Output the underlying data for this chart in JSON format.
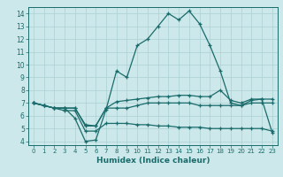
{
  "xlabel": "Humidex (Indice chaleur)",
  "ylabel": "",
  "bg_color": "#cce8ea",
  "grid_color": "#aad0d4",
  "line_color": "#1a6b6b",
  "xlim": [
    -0.5,
    23.5
  ],
  "ylim": [
    3.7,
    14.5
  ],
  "yticks": [
    4,
    5,
    6,
    7,
    8,
    9,
    10,
    11,
    12,
    13,
    14
  ],
  "xticks": [
    0,
    1,
    2,
    3,
    4,
    5,
    6,
    7,
    8,
    9,
    10,
    11,
    12,
    13,
    14,
    15,
    16,
    17,
    18,
    19,
    20,
    21,
    22,
    23
  ],
  "line1_x": [
    0,
    1,
    2,
    3,
    4,
    5,
    6,
    7,
    8,
    9,
    10,
    11,
    12,
    13,
    14,
    15,
    16,
    17,
    18,
    19,
    20,
    21,
    22,
    23
  ],
  "line1_y": [
    7.0,
    6.8,
    6.6,
    6.6,
    5.8,
    4.0,
    4.1,
    6.5,
    9.5,
    9.0,
    11.5,
    12.0,
    13.0,
    14.0,
    13.5,
    14.2,
    13.2,
    11.5,
    9.5,
    7.0,
    6.8,
    7.2,
    7.3,
    4.7
  ],
  "line2_x": [
    0,
    1,
    2,
    3,
    4,
    5,
    6,
    7,
    8,
    9,
    10,
    11,
    12,
    13,
    14,
    15,
    16,
    17,
    18,
    19,
    20,
    21,
    22,
    23
  ],
  "line2_y": [
    7.0,
    6.8,
    6.6,
    6.6,
    6.6,
    5.3,
    5.2,
    6.6,
    7.1,
    7.2,
    7.3,
    7.4,
    7.5,
    7.5,
    7.6,
    7.6,
    7.5,
    7.5,
    8.0,
    7.2,
    7.0,
    7.3,
    7.3,
    7.3
  ],
  "line3_x": [
    0,
    1,
    2,
    3,
    4,
    5,
    6,
    7,
    8,
    9,
    10,
    11,
    12,
    13,
    14,
    15,
    16,
    17,
    18,
    19,
    20,
    21,
    22,
    23
  ],
  "line3_y": [
    7.0,
    6.8,
    6.6,
    6.6,
    6.6,
    5.2,
    5.2,
    6.6,
    6.6,
    6.6,
    6.8,
    7.0,
    7.0,
    7.0,
    7.0,
    7.0,
    6.8,
    6.8,
    6.8,
    6.8,
    6.8,
    7.0,
    7.0,
    7.0
  ],
  "line4_x": [
    0,
    1,
    2,
    3,
    4,
    5,
    6,
    7,
    8,
    9,
    10,
    11,
    12,
    13,
    14,
    15,
    16,
    17,
    18,
    19,
    20,
    21,
    22,
    23
  ],
  "line4_y": [
    7.0,
    6.8,
    6.6,
    6.4,
    6.4,
    4.8,
    4.8,
    5.4,
    5.4,
    5.4,
    5.3,
    5.3,
    5.2,
    5.2,
    5.1,
    5.1,
    5.1,
    5.0,
    5.0,
    5.0,
    5.0,
    5.0,
    5.0,
    4.8
  ]
}
